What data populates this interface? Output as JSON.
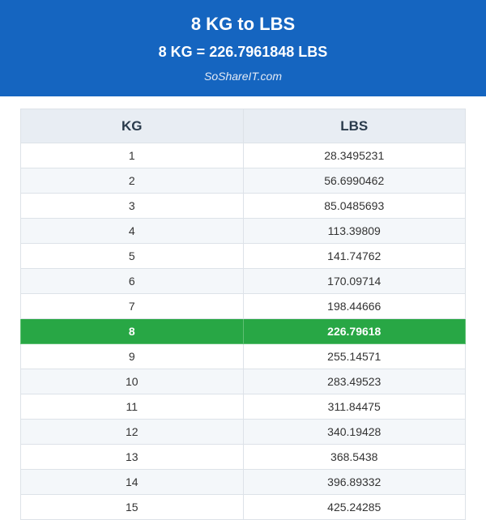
{
  "header": {
    "title": "8 KG to LBS",
    "subtitle": "8 KG = 226.7961848 LBS",
    "site": "SoShareIT.com"
  },
  "table": {
    "columns": [
      "KG",
      "LBS"
    ],
    "highlight_color": "#28a745",
    "header_color": "#1565c0",
    "rows": [
      {
        "kg": "1",
        "lbs": "28.3495231",
        "highlight": false
      },
      {
        "kg": "2",
        "lbs": "56.6990462",
        "highlight": false
      },
      {
        "kg": "3",
        "lbs": "85.0485693",
        "highlight": false
      },
      {
        "kg": "4",
        "lbs": "113.39809",
        "highlight": false
      },
      {
        "kg": "5",
        "lbs": "141.74762",
        "highlight": false
      },
      {
        "kg": "6",
        "lbs": "170.09714",
        "highlight": false
      },
      {
        "kg": "7",
        "lbs": "198.44666",
        "highlight": false
      },
      {
        "kg": "8",
        "lbs": "226.79618",
        "highlight": true
      },
      {
        "kg": "9",
        "lbs": "255.14571",
        "highlight": false
      },
      {
        "kg": "10",
        "lbs": "283.49523",
        "highlight": false
      },
      {
        "kg": "11",
        "lbs": "311.84475",
        "highlight": false
      },
      {
        "kg": "12",
        "lbs": "340.19428",
        "highlight": false
      },
      {
        "kg": "13",
        "lbs": "368.5438",
        "highlight": false
      },
      {
        "kg": "14",
        "lbs": "396.89332",
        "highlight": false
      },
      {
        "kg": "15",
        "lbs": "425.24285",
        "highlight": false
      }
    ]
  }
}
